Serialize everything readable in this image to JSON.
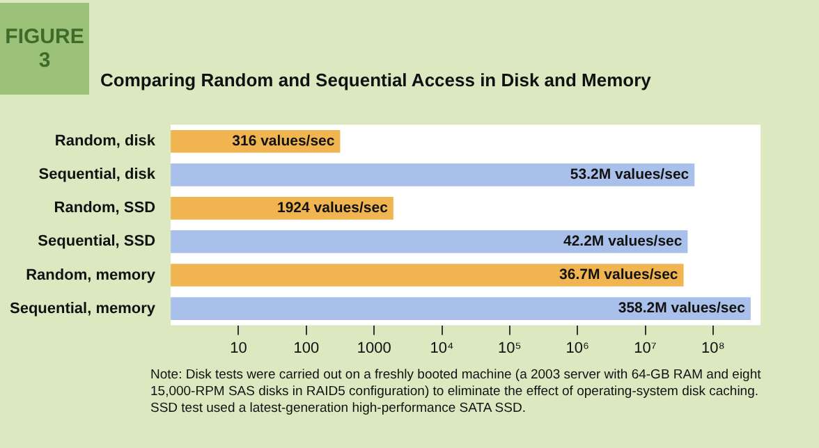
{
  "chart_data": {
    "type": "bar",
    "orientation": "horizontal",
    "title": "Comparing Random and Sequential Access in Disk and Memory",
    "annotations": [
      "FIGURE 3",
      "Note: Disk tests were carried out on a freshly booted machine (a 2003 server with 64-GB RAM and eight 15,000-RPM SAS disks in RAID5 configuration) to eliminate the effect of operating-system disk caching. SSD test used a latest-generation high-performance SATA SSD."
    ],
    "categories": [
      "Random, disk",
      "Sequential, disk",
      "Random, SSD",
      "Sequential, SSD",
      "Random, memory",
      "Sequential, memory"
    ],
    "values": [
      316,
      53200000,
      1924,
      42200000,
      36700000,
      358200000
    ],
    "colors": [
      "#f0b450",
      "#a9c0ea",
      "#f0b450",
      "#a9c0ea",
      "#f0b450",
      "#a9c0ea"
    ],
    "value_labels": [
      "316 values/sec",
      "53.2M values/sec",
      "1924 values/sec",
      "42.2M values/sec",
      "36.7M values/sec",
      "358.2M values/sec"
    ],
    "log": "x",
    "xlim": [
      1,
      500000000
    ],
    "xticks": [
      10,
      100,
      1000,
      {
        "value": 10000,
        "label": "10⁴"
      },
      {
        "value": 100000,
        "label": "10⁵"
      },
      {
        "value": 1000000,
        "label": "10⁶"
      },
      {
        "value": 10000000,
        "label": "10⁷"
      },
      {
        "value": 100000000,
        "label": "10⁸"
      }
    ]
  }
}
